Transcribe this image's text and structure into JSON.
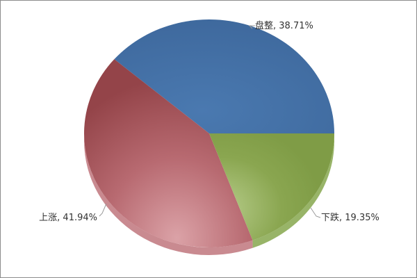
{
  "chart_data": {
    "type": "pie",
    "style": "3d",
    "start_angle": "3 o'clock, counterclockwise",
    "slices": [
      {
        "label": "盘整",
        "value": 38.71,
        "display": "盘整, 38.71%",
        "color": "#3f6a9e"
      },
      {
        "label": "上涨",
        "value": 41.94,
        "display": "上涨, 41.94%",
        "color": "#a04a4f"
      },
      {
        "label": "下跌",
        "value": 19.35,
        "display": "下跌, 19.35%",
        "color": "#86a24a"
      }
    ]
  }
}
